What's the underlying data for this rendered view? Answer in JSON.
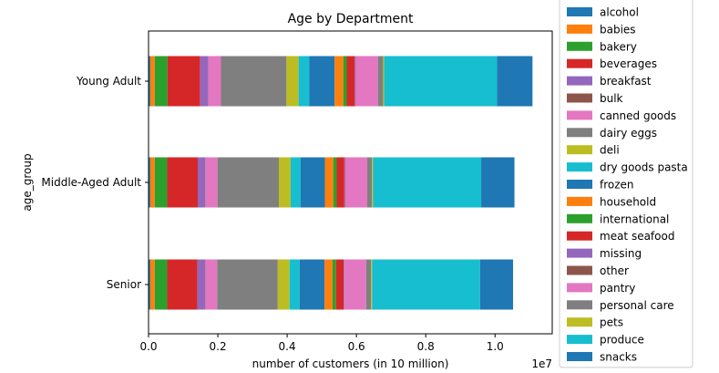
{
  "chart_data": {
    "type": "bar",
    "orientation": "horizontal",
    "stacked": true,
    "title": "Age by Department",
    "xlabel": "number of customers (in 10 million)",
    "ylabel": "age_group",
    "x_offset_label": "1e7",
    "xlim": [
      0,
      1.165
    ],
    "x_ticks": [
      0.0,
      0.2,
      0.4,
      0.6,
      0.8,
      1.0
    ],
    "x_tick_labels": [
      "0.0",
      "0.2",
      "0.4",
      "0.6",
      "0.8",
      "1.0"
    ],
    "categories": [
      "Young Adult",
      "Middle-Aged Adult",
      "Senior"
    ],
    "legend_position": "upper-right-outside",
    "grid": false,
    "series": [
      {
        "name": "alcohol",
        "color": "#1f77b4",
        "values": [
          0.005,
          0.005,
          0.005
        ]
      },
      {
        "name": "babies",
        "color": "#ff7f0e",
        "values": [
          0.013,
          0.013,
          0.013
        ]
      },
      {
        "name": "bakery",
        "color": "#2ca02c",
        "values": [
          0.037,
          0.036,
          0.036
        ]
      },
      {
        "name": "beverages",
        "color": "#d62728",
        "values": [
          0.094,
          0.088,
          0.087
        ]
      },
      {
        "name": "breakfast",
        "color": "#9467bd",
        "values": [
          0.023,
          0.022,
          0.022
        ]
      },
      {
        "name": "bulk",
        "color": "#8c564b",
        "values": [
          0.001,
          0.001,
          0.001
        ]
      },
      {
        "name": "canned goods",
        "color": "#e377c2",
        "values": [
          0.036,
          0.034,
          0.034
        ]
      },
      {
        "name": "dairy eggs",
        "color": "#7f7f7f",
        "values": [
          0.189,
          0.177,
          0.175
        ]
      },
      {
        "name": "deli",
        "color": "#bcbd22",
        "values": [
          0.035,
          0.034,
          0.034
        ]
      },
      {
        "name": "dry goods pasta",
        "color": "#17becf",
        "values": [
          0.031,
          0.029,
          0.029
        ]
      },
      {
        "name": "frozen",
        "color": "#1f77b4",
        "values": [
          0.073,
          0.07,
          0.072
        ]
      },
      {
        "name": "household",
        "color": "#ff7f0e",
        "values": [
          0.025,
          0.024,
          0.023
        ]
      },
      {
        "name": "international",
        "color": "#2ca02c",
        "values": [
          0.01,
          0.01,
          0.01
        ]
      },
      {
        "name": "meat seafood",
        "color": "#d62728",
        "values": [
          0.023,
          0.022,
          0.022
        ]
      },
      {
        "name": "missing",
        "color": "#9467bd",
        "values": [
          0.002,
          0.002,
          0.002
        ]
      },
      {
        "name": "other",
        "color": "#8c564b",
        "values": [
          0.001,
          0.001,
          0.001
        ]
      },
      {
        "name": "pantry",
        "color": "#e377c2",
        "values": [
          0.064,
          0.063,
          0.062
        ]
      },
      {
        "name": "personal care",
        "color": "#7f7f7f",
        "values": [
          0.015,
          0.014,
          0.014
        ]
      },
      {
        "name": "pets",
        "color": "#bcbd22",
        "values": [
          0.003,
          0.003,
          0.003
        ]
      },
      {
        "name": "produce",
        "color": "#17becf",
        "values": [
          0.326,
          0.312,
          0.312
        ]
      },
      {
        "name": "snacks",
        "color": "#1f77b4",
        "values": [
          0.102,
          0.096,
          0.095
        ]
      }
    ]
  }
}
